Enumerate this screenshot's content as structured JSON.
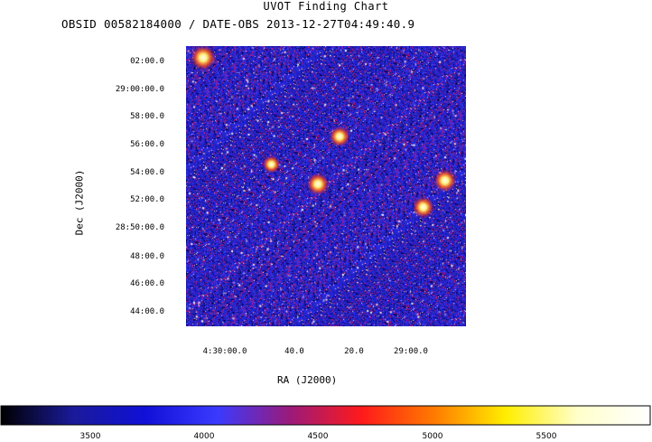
{
  "title": "UVOT Finding Chart",
  "subtitle": "OBSID 00582184000 / DATE-OBS 2013-12-27T04:49:40.9",
  "chart_data": {
    "type": "heatmap",
    "xlabel": "RA (J2000)",
    "ylabel": "Dec (J2000)",
    "x_ticks": [
      "4:30:00.0",
      "40.0",
      "20.0",
      "29:00.0"
    ],
    "y_ticks": [
      "02:00.0",
      "29:00:00.0",
      "58:00.0",
      "56:00.0",
      "54:00.0",
      "52:00.0",
      "28:50:00.0",
      "48:00.0",
      "46:00.0",
      "44:00.0"
    ],
    "colorbar": {
      "ticks": [
        "3500",
        "4000",
        "4500",
        "5000",
        "5500"
      ],
      "tick_values": [
        3500,
        4000,
        4500,
        5000,
        5500
      ],
      "range": [
        3200,
        5900
      ],
      "colormap": [
        "#000000",
        "#1a1a9a",
        "#1010d8",
        "#3a3aff",
        "#9a1a7a",
        "#ff1a1a",
        "#ff7a00",
        "#ffee00",
        "#ffffcc",
        "#ffffff"
      ]
    },
    "background_color": "#1c1cb4",
    "bright_sources": [
      {
        "ra": "4:30:07",
        "dec": "29:02:20",
        "brightness": 1.0
      },
      {
        "ra": "4:29:23",
        "dec": "28:56:40",
        "brightness": 0.7
      },
      {
        "ra": "4:29:30",
        "dec": "28:53:15",
        "brightness": 0.8
      },
      {
        "ra": "4:28:49",
        "dec": "28:53:30",
        "brightness": 0.85
      },
      {
        "ra": "4:28:56",
        "dec": "28:51:35",
        "brightness": 0.75
      },
      {
        "ra": "4:29:45",
        "dec": "28:54:40",
        "brightness": 0.5
      }
    ]
  }
}
